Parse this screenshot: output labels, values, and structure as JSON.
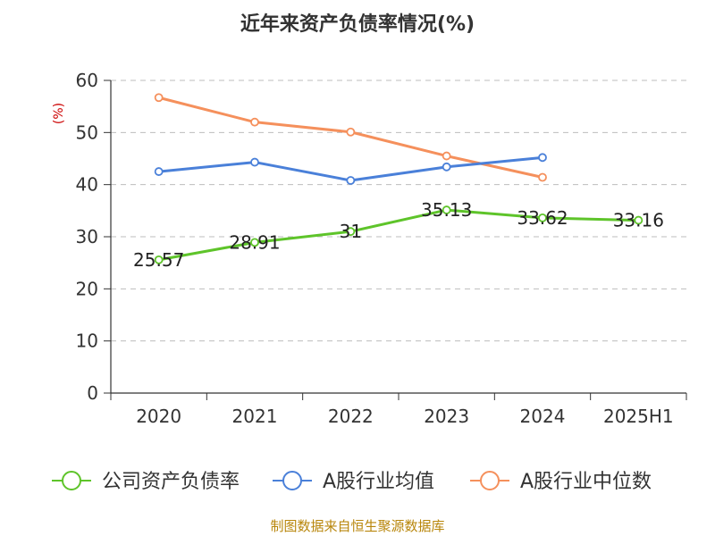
{
  "chart_data": {
    "type": "line",
    "title": "近年来资产负债率情况(%)",
    "ylabel": "(%)",
    "categories": [
      "2020",
      "2021",
      "2022",
      "2023",
      "2024",
      "2025H1"
    ],
    "yticks": [
      "0",
      "10",
      "20",
      "30",
      "40",
      "50",
      "60"
    ],
    "ylim": [
      0,
      60
    ],
    "grid": true,
    "legend_position": "bottom",
    "series": [
      {
        "name": "公司资产负债率",
        "color": "#5ec42a",
        "values": [
          25.57,
          28.91,
          31,
          35.13,
          33.62,
          33.16
        ],
        "labels": [
          "25.57",
          "28.91",
          "31",
          "35.13",
          "33.62",
          "33.16"
        ]
      },
      {
        "name": "A股行业均值",
        "color": "#4a80d9",
        "values": [
          42.5,
          44.3,
          40.8,
          43.4,
          45.2,
          null
        ]
      },
      {
        "name": "A股行业中位数",
        "color": "#f5905c",
        "values": [
          56.7,
          52.0,
          50.1,
          45.5,
          41.4,
          null
        ]
      }
    ]
  },
  "source": "制图数据来自恒生聚源数据库"
}
